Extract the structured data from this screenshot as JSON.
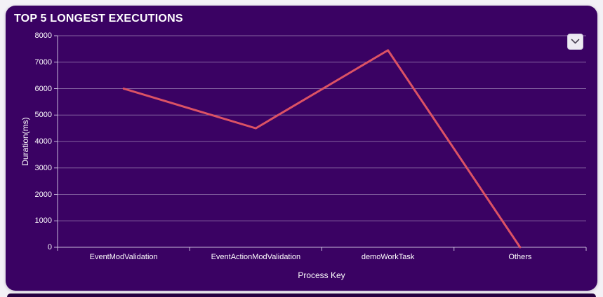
{
  "card": {
    "title": "TOP 5 LONGEST EXECUTIONS",
    "collapse_button": {
      "icon": "chevron-down-icon"
    }
  },
  "chart_data": {
    "type": "line",
    "title": "TOP 5 LONGEST EXECUTIONS",
    "categories": [
      "EventModValidation",
      "EventActionModValidation",
      "demoWorkTask",
      "Others"
    ],
    "values": [
      6000,
      4500,
      7450,
      0
    ],
    "xlabel": "Process Key",
    "ylabel": "Duration(ms)",
    "ylim": [
      0,
      8000
    ],
    "ytick_step": 1000,
    "yticks": [
      0,
      1000,
      2000,
      3000,
      4000,
      5000,
      6000,
      7000,
      8000
    ],
    "grid": true,
    "legend": "none",
    "line_color": "#dc5264",
    "markers": false
  },
  "colors": {
    "page_background": "#f3f1f6",
    "card_background": "#3a0263",
    "grid": "rgba(226,220,240,0.45)",
    "axis": "rgba(226,220,240,0.85)",
    "text": "#ffffff",
    "series_line": "#dc5264",
    "button_background": "#edeaf3",
    "button_icon": "#4b4355"
  }
}
